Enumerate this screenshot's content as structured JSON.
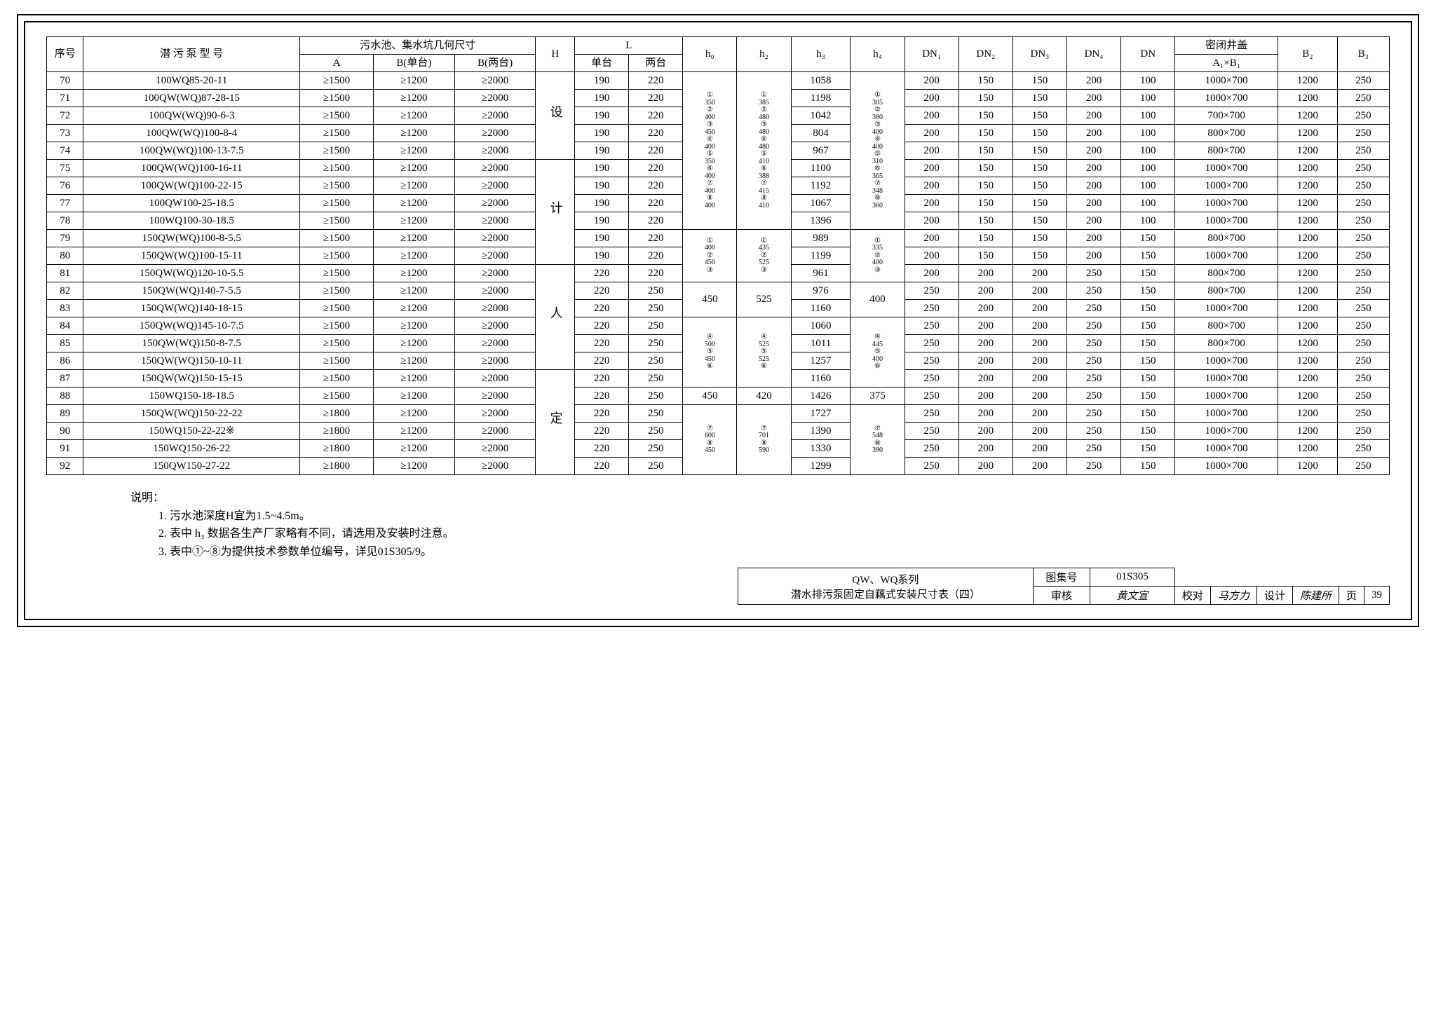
{
  "headers": {
    "seq": "序号",
    "model": "潜 污 泵 型 号",
    "pit": "污水池、集水坑几何尺寸",
    "A": "A",
    "Bsingle": "B(单台)",
    "Bdouble": "B(两台)",
    "H": "H",
    "L": "L",
    "Lsingle": "单台",
    "Ldouble": "两台",
    "h0": "h₀",
    "h2": "h₂",
    "h3": "h₃",
    "h4": "h₄",
    "DN1": "DN₁",
    "DN2": "DN₂",
    "DN3": "DN₃",
    "DN4": "DN₄",
    "DN": "DN",
    "cover": "密闭井盖",
    "A1B1": "A₁×B₁",
    "B2": "B₂",
    "B3": "B₃"
  },
  "H_text": "设",
  "H_text2": "计",
  "H_text3": "人",
  "H_text4": "定",
  "rows": [
    {
      "seq": "70",
      "model": "100WQ85-20-11",
      "A": "≥1500",
      "Bs": "≥1200",
      "Bd": "≥2000",
      "Ls": "190",
      "Ld": "220",
      "h3": "1058",
      "dn1": "200",
      "dn2": "150",
      "dn3": "150",
      "dn4": "200",
      "dn": "100",
      "cv": "1000×700",
      "b2": "1200",
      "b3": "250"
    },
    {
      "seq": "71",
      "model": "100QW(WQ)87-28-15",
      "A": "≥1500",
      "Bs": "≥1200",
      "Bd": "≥2000",
      "Ls": "190",
      "Ld": "220",
      "h3": "1198",
      "dn1": "200",
      "dn2": "150",
      "dn3": "150",
      "dn4": "200",
      "dn": "100",
      "cv": "1000×700",
      "b2": "1200",
      "b3": "250"
    },
    {
      "seq": "72",
      "model": "100QW(WQ)90-6-3",
      "A": "≥1500",
      "Bs": "≥1200",
      "Bd": "≥2000",
      "Ls": "190",
      "Ld": "220",
      "h3": "1042",
      "dn1": "200",
      "dn2": "150",
      "dn3": "150",
      "dn4": "200",
      "dn": "100",
      "cv": "700×700",
      "b2": "1200",
      "b3": "250"
    },
    {
      "seq": "73",
      "model": "100QW(WQ)100-8-4",
      "A": "≥1500",
      "Bs": "≥1200",
      "Bd": "≥2000",
      "Ls": "190",
      "Ld": "220",
      "h3": "804",
      "dn1": "200",
      "dn2": "150",
      "dn3": "150",
      "dn4": "200",
      "dn": "100",
      "cv": "800×700",
      "b2": "1200",
      "b3": "250"
    },
    {
      "seq": "74",
      "model": "100QW(WQ)100-13-7.5",
      "A": "≥1500",
      "Bs": "≥1200",
      "Bd": "≥2000",
      "Ls": "190",
      "Ld": "220",
      "h3": "967",
      "dn1": "200",
      "dn2": "150",
      "dn3": "150",
      "dn4": "200",
      "dn": "100",
      "cv": "800×700",
      "b2": "1200",
      "b3": "250"
    },
    {
      "seq": "75",
      "model": "100QW(WQ)100-16-11",
      "A": "≥1500",
      "Bs": "≥1200",
      "Bd": "≥2000",
      "Ls": "190",
      "Ld": "220",
      "h3": "1100",
      "dn1": "200",
      "dn2": "150",
      "dn3": "150",
      "dn4": "200",
      "dn": "100",
      "cv": "1000×700",
      "b2": "1200",
      "b3": "250"
    },
    {
      "seq": "76",
      "model": "100QW(WQ)100-22-15",
      "A": "≥1500",
      "Bs": "≥1200",
      "Bd": "≥2000",
      "Ls": "190",
      "Ld": "220",
      "h3": "1192",
      "dn1": "200",
      "dn2": "150",
      "dn3": "150",
      "dn4": "200",
      "dn": "100",
      "cv": "1000×700",
      "b2": "1200",
      "b3": "250"
    },
    {
      "seq": "77",
      "model": "100QW100-25-18.5",
      "A": "≥1500",
      "Bs": "≥1200",
      "Bd": "≥2000",
      "Ls": "190",
      "Ld": "220",
      "h3": "1067",
      "dn1": "200",
      "dn2": "150",
      "dn3": "150",
      "dn4": "200",
      "dn": "100",
      "cv": "1000×700",
      "b2": "1200",
      "b3": "250"
    },
    {
      "seq": "78",
      "model": "100WQ100-30-18.5",
      "A": "≥1500",
      "Bs": "≥1200",
      "Bd": "≥2000",
      "Ls": "190",
      "Ld": "220",
      "h3": "1396",
      "dn1": "200",
      "dn2": "150",
      "dn3": "150",
      "dn4": "200",
      "dn": "100",
      "cv": "1000×700",
      "b2": "1200",
      "b3": "250"
    },
    {
      "seq": "79",
      "model": "150QW(WQ)100-8-5.5",
      "A": "≥1500",
      "Bs": "≥1200",
      "Bd": "≥2000",
      "Ls": "190",
      "Ld": "220",
      "h3": "989",
      "dn1": "200",
      "dn2": "150",
      "dn3": "150",
      "dn4": "200",
      "dn": "150",
      "cv": "800×700",
      "b2": "1200",
      "b3": "250"
    },
    {
      "seq": "80",
      "model": "150QW(WQ)100-15-11",
      "A": "≥1500",
      "Bs": "≥1200",
      "Bd": "≥2000",
      "Ls": "190",
      "Ld": "220",
      "h3": "1199",
      "dn1": "200",
      "dn2": "150",
      "dn3": "150",
      "dn4": "200",
      "dn": "150",
      "cv": "1000×700",
      "b2": "1200",
      "b3": "250"
    },
    {
      "seq": "81",
      "model": "150QW(WQ)120-10-5.5",
      "A": "≥1500",
      "Bs": "≥1200",
      "Bd": "≥2000",
      "Ls": "220",
      "Ld": "220",
      "h3": "961",
      "dn1": "200",
      "dn2": "200",
      "dn3": "200",
      "dn4": "250",
      "dn": "150",
      "cv": "800×700",
      "b2": "1200",
      "b3": "250"
    },
    {
      "seq": "82",
      "model": "150QW(WQ)140-7-5.5",
      "A": "≥1500",
      "Bs": "≥1200",
      "Bd": "≥2000",
      "Ls": "220",
      "Ld": "250",
      "h3": "976",
      "dn1": "250",
      "dn2": "200",
      "dn3": "200",
      "dn4": "250",
      "dn": "150",
      "cv": "800×700",
      "b2": "1200",
      "b3": "250"
    },
    {
      "seq": "83",
      "model": "150QW(WQ)140-18-15",
      "A": "≥1500",
      "Bs": "≥1200",
      "Bd": "≥2000",
      "Ls": "220",
      "Ld": "250",
      "h3": "1160",
      "dn1": "250",
      "dn2": "200",
      "dn3": "200",
      "dn4": "250",
      "dn": "150",
      "cv": "1000×700",
      "b2": "1200",
      "b3": "250"
    },
    {
      "seq": "84",
      "model": "150QW(WQ)145-10-7.5",
      "A": "≥1500",
      "Bs": "≥1200",
      "Bd": "≥2000",
      "Ls": "220",
      "Ld": "250",
      "h3": "1060",
      "dn1": "250",
      "dn2": "200",
      "dn3": "200",
      "dn4": "250",
      "dn": "150",
      "cv": "800×700",
      "b2": "1200",
      "b3": "250"
    },
    {
      "seq": "85",
      "model": "150QW(WQ)150-8-7.5",
      "A": "≥1500",
      "Bs": "≥1200",
      "Bd": "≥2000",
      "Ls": "220",
      "Ld": "250",
      "h3": "1011",
      "dn1": "250",
      "dn2": "200",
      "dn3": "200",
      "dn4": "250",
      "dn": "150",
      "cv": "800×700",
      "b2": "1200",
      "b3": "250"
    },
    {
      "seq": "86",
      "model": "150QW(WQ)150-10-11",
      "A": "≥1500",
      "Bs": "≥1200",
      "Bd": "≥2000",
      "Ls": "220",
      "Ld": "250",
      "h3": "1257",
      "dn1": "250",
      "dn2": "200",
      "dn3": "200",
      "dn4": "250",
      "dn": "150",
      "cv": "1000×700",
      "b2": "1200",
      "b3": "250"
    },
    {
      "seq": "87",
      "model": "150QW(WQ)150-15-15",
      "A": "≥1500",
      "Bs": "≥1200",
      "Bd": "≥2000",
      "Ls": "220",
      "Ld": "250",
      "h3": "1160",
      "dn1": "250",
      "dn2": "200",
      "dn3": "200",
      "dn4": "250",
      "dn": "150",
      "cv": "1000×700",
      "b2": "1200",
      "b3": "250"
    },
    {
      "seq": "88",
      "model": "150WQ150-18-18.5",
      "A": "≥1500",
      "Bs": "≥1200",
      "Bd": "≥2000",
      "Ls": "220",
      "Ld": "250",
      "h3": "1426",
      "dn1": "250",
      "dn2": "200",
      "dn3": "200",
      "dn4": "250",
      "dn": "150",
      "cv": "1000×700",
      "b2": "1200",
      "b3": "250"
    },
    {
      "seq": "89",
      "model": "150QW(WQ)150-22-22",
      "A": "≥1800",
      "Bs": "≥1200",
      "Bd": "≥2000",
      "Ls": "220",
      "Ld": "250",
      "h3": "1727",
      "dn1": "250",
      "dn2": "200",
      "dn3": "200",
      "dn4": "250",
      "dn": "150",
      "cv": "1000×700",
      "b2": "1200",
      "b3": "250"
    },
    {
      "seq": "90",
      "model": "150WQ150-22-22※",
      "A": "≥1800",
      "Bs": "≥1200",
      "Bd": "≥2000",
      "Ls": "220",
      "Ld": "250",
      "h3": "1390",
      "dn1": "250",
      "dn2": "200",
      "dn3": "200",
      "dn4": "250",
      "dn": "150",
      "cv": "1000×700",
      "b2": "1200",
      "b3": "250"
    },
    {
      "seq": "91",
      "model": "150WQ150-26-22",
      "A": "≥1800",
      "Bs": "≥1200",
      "Bd": "≥2000",
      "Ls": "220",
      "Ld": "250",
      "h3": "1330",
      "dn1": "250",
      "dn2": "200",
      "dn3": "200",
      "dn4": "250",
      "dn": "150",
      "cv": "1000×700",
      "b2": "1200",
      "b3": "250"
    },
    {
      "seq": "92",
      "model": "150QW150-27-22",
      "A": "≥1800",
      "Bs": "≥1200",
      "Bd": "≥2000",
      "Ls": "220",
      "Ld": "250",
      "h3": "1299",
      "dn1": "250",
      "dn2": "200",
      "dn3": "200",
      "dn4": "250",
      "dn": "150",
      "cv": "1000×700",
      "b2": "1200",
      "b3": "250"
    }
  ],
  "h0_block1": [
    "①",
    "350",
    "②",
    "400",
    "③",
    "450",
    "④",
    "400",
    "⑤",
    "350",
    "⑥",
    "400",
    "⑦",
    "400",
    "⑧",
    "400"
  ],
  "h2_block1": [
    "①",
    "385",
    "②",
    "480",
    "③",
    "480",
    "④",
    "480",
    "⑤",
    "410",
    "⑥",
    "388",
    "⑦",
    "415",
    "⑧",
    "410"
  ],
  "h4_block1": [
    "①",
    "305",
    "②",
    "380",
    "③",
    "400",
    "④",
    "400",
    "⑤",
    "310",
    "⑥",
    "365",
    "⑦",
    "348",
    "⑧",
    "360"
  ],
  "h0_block2_a": [
    "①",
    "400",
    "②",
    "450",
    "③"
  ],
  "h2_block2_a": [
    "①",
    "435",
    "②",
    "525",
    "③"
  ],
  "h4_block2_a": [
    "①",
    "335",
    "②",
    "400",
    "③"
  ],
  "h0_r83": "450",
  "h2_r83": "525",
  "h4_r83": "400",
  "h0_block2_b": [
    "④",
    "500",
    "⑤",
    "450",
    "⑥"
  ],
  "h2_block2_b": [
    "④",
    "525",
    "⑤",
    "525",
    "⑥"
  ],
  "h4_block2_b": [
    "④",
    "445",
    "⑤",
    "400",
    "⑥"
  ],
  "h0_r88": "450",
  "h2_r88": "420",
  "h4_r88": "375",
  "h0_block2_c": [
    "⑦",
    "600",
    "⑧",
    "450"
  ],
  "h2_block2_c": [
    "⑦",
    "701",
    "⑧",
    "590"
  ],
  "h4_block2_c": [
    "⑦",
    "548",
    "⑧",
    "390"
  ],
  "notes": {
    "title": "说明：",
    "n1": "1. 污水池深度H宜为1.5~4.5m。",
    "n2": "2. 表中 h₃ 数据各生产厂家略有不同，请选用及安装时注意。",
    "n3": "3. 表中①~⑧为提供技术参数单位编号，详见01S305/9。"
  },
  "titleblock": {
    "title1": "QW、WQ系列",
    "title2": "潜水排污泵固定自藕式安装尺寸表（四）",
    "setLabel": "图集号",
    "setNo": "01S305",
    "review": "审核",
    "reviewName": "黄文宣",
    "check": "校对",
    "checkName": "马方力",
    "design": "设计",
    "designName": "陈建所",
    "pageLabel": "页",
    "pageNo": "39"
  }
}
